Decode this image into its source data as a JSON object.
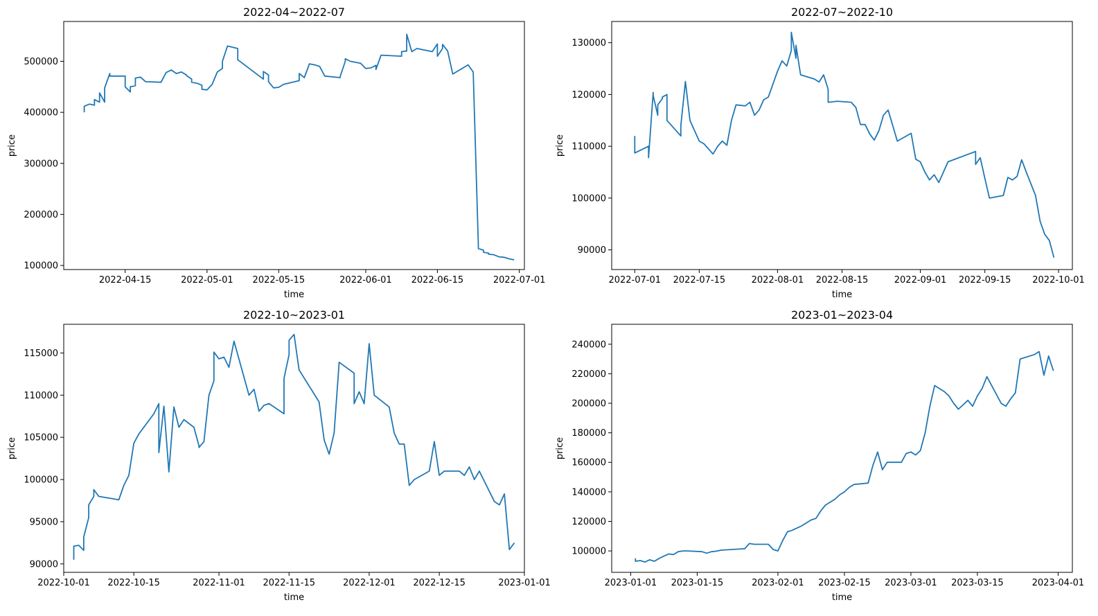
{
  "colors": {
    "line": "#1f77b4",
    "axes": "#000000",
    "background": "#ffffff"
  },
  "chart_data": [
    {
      "type": "line",
      "title": "2022-04~2022-07",
      "xlabel": "time",
      "ylabel": "price",
      "xlim": [
        "2022-04-03",
        "2022-07-02"
      ],
      "ylim": [
        92000,
        578000
      ],
      "grid": false,
      "x_ticks": [
        "2022-04-15",
        "2022-05-01",
        "2022-05-15",
        "2022-06-01",
        "2022-06-15",
        "2022-07-01"
      ],
      "x_tick_labels": [
        "2022-04-15",
        "2022-05-01",
        "2022-05-15",
        "2022-06-01",
        "2022-06-15",
        "2022-07-01"
      ],
      "y_ticks": [
        100000,
        200000,
        300000,
        400000,
        500000
      ],
      "y_tick_labels": [
        "100000",
        "200000",
        "300000",
        "400000",
        "500000"
      ],
      "series": [
        {
          "x": [
            "2022-04-07",
            "2022-04-07",
            "2022-04-08",
            "2022-04-09",
            "2022-04-09",
            "2022-04-10",
            "2022-04-10",
            "2022-04-11",
            "2022-04-11",
            "2022-04-12",
            "2022-04-12",
            "2022-04-15",
            "2022-04-15",
            "2022-04-16",
            "2022-04-16",
            "2022-04-17",
            "2022-04-17",
            "2022-04-18",
            "2022-04-19",
            "2022-04-22",
            "2022-04-23",
            "2022-04-24",
            "2022-04-25",
            "2022-04-26",
            "2022-04-27",
            "2022-04-27",
            "2022-04-28",
            "2022-04-28",
            "2022-04-29",
            "2022-04-30",
            "2022-04-30",
            "2022-05-01",
            "2022-05-02",
            "2022-05-03",
            "2022-05-04",
            "2022-05-04",
            "2022-05-05",
            "2022-05-07",
            "2022-05-07",
            "2022-05-12",
            "2022-05-12",
            "2022-05-13",
            "2022-05-13",
            "2022-05-14",
            "2022-05-15",
            "2022-05-16",
            "2022-05-19",
            "2022-05-19",
            "2022-05-20",
            "2022-05-21",
            "2022-05-22",
            "2022-05-23",
            "2022-05-24",
            "2022-05-27",
            "2022-05-27",
            "2022-05-28",
            "2022-05-28",
            "2022-05-29",
            "2022-05-30",
            "2022-05-31",
            "2022-06-01",
            "2022-06-02",
            "2022-06-03",
            "2022-06-03",
            "2022-06-04",
            "2022-06-08",
            "2022-06-08",
            "2022-06-09",
            "2022-06-09",
            "2022-06-10",
            "2022-06-11",
            "2022-06-14",
            "2022-06-15",
            "2022-06-15",
            "2022-06-16",
            "2022-06-16",
            "2022-06-17",
            "2022-06-18",
            "2022-06-21",
            "2022-06-22",
            "2022-06-23",
            "2022-06-23",
            "2022-06-24",
            "2022-06-24",
            "2022-06-25",
            "2022-06-25",
            "2022-06-26",
            "2022-06-27",
            "2022-06-28",
            "2022-06-29",
            "2022-06-30"
          ],
          "y": [
            400000,
            412000,
            416000,
            414000,
            425000,
            420000,
            438000,
            420000,
            448000,
            476000,
            471000,
            471000,
            450000,
            440000,
            450000,
            452000,
            467000,
            469000,
            460000,
            459000,
            478000,
            483000,
            476000,
            479000,
            473000,
            472000,
            465000,
            459000,
            457000,
            453000,
            445000,
            444000,
            455000,
            479000,
            486000,
            500000,
            530000,
            525000,
            503000,
            465000,
            480000,
            473000,
            460000,
            448000,
            449000,
            455000,
            462000,
            476000,
            468000,
            495000,
            493000,
            490000,
            471000,
            468000,
            470000,
            500000,
            505000,
            500000,
            498000,
            496000,
            486000,
            487000,
            492000,
            484000,
            512000,
            510000,
            519000,
            520000,
            553000,
            519000,
            525000,
            519000,
            534000,
            510000,
            525000,
            533000,
            520000,
            475000,
            493000,
            479000,
            140000,
            133000,
            130000,
            126000,
            124000,
            122000,
            121000,
            117000,
            116000,
            113000,
            111000
          ]
        }
      ]
    },
    {
      "type": "line",
      "title": "2022-07~2022-10",
      "xlabel": "time",
      "ylabel": "price",
      "xlim": [
        "2022-06-26",
        "2022-10-04"
      ],
      "ylim": [
        86200,
        134100
      ],
      "grid": false,
      "x_ticks": [
        "2022-07-01",
        "2022-07-15",
        "2022-08-01",
        "2022-08-15",
        "2022-09-01",
        "2022-09-15",
        "2022-10-01"
      ],
      "x_tick_labels": [
        "2022-07-01",
        "2022-07-15",
        "2022-08-01",
        "2022-08-15",
        "2022-09-01",
        "2022-09-15",
        "2022-10-01"
      ],
      "y_ticks": [
        90000,
        100000,
        110000,
        120000,
        130000
      ],
      "y_tick_labels": [
        "90000",
        "100000",
        "110000",
        "120000",
        "130000"
      ],
      "series": [
        {
          "x": [
            "2022-07-01",
            "2022-07-01",
            "2022-07-04",
            "2022-07-04",
            "2022-07-05",
            "2022-07-05",
            "2022-07-06",
            "2022-07-06",
            "2022-07-07",
            "2022-07-07",
            "2022-07-08",
            "2022-07-08",
            "2022-07-11",
            "2022-07-11",
            "2022-07-12",
            "2022-07-13",
            "2022-07-14",
            "2022-07-15",
            "2022-07-16",
            "2022-07-18",
            "2022-07-19",
            "2022-07-20",
            "2022-07-21",
            "2022-07-22",
            "2022-07-23",
            "2022-07-25",
            "2022-07-26",
            "2022-07-27",
            "2022-07-28",
            "2022-07-29",
            "2022-07-30",
            "2022-08-01",
            "2022-08-02",
            "2022-08-03",
            "2022-08-04",
            "2022-08-04",
            "2022-08-05",
            "2022-08-05",
            "2022-08-06",
            "2022-08-09",
            "2022-08-10",
            "2022-08-11",
            "2022-08-12",
            "2022-08-12",
            "2022-08-14",
            "2022-08-17",
            "2022-08-18",
            "2022-08-19",
            "2022-08-20",
            "2022-08-21",
            "2022-08-22",
            "2022-08-23",
            "2022-08-24",
            "2022-08-25",
            "2022-08-26",
            "2022-08-27",
            "2022-08-30",
            "2022-08-31",
            "2022-09-01",
            "2022-09-02",
            "2022-09-03",
            "2022-09-04",
            "2022-09-05",
            "2022-09-06",
            "2022-09-07",
            "2022-09-13",
            "2022-09-13",
            "2022-09-14",
            "2022-09-15",
            "2022-09-16",
            "2022-09-19",
            "2022-09-20",
            "2022-09-21",
            "2022-09-22",
            "2022-09-23",
            "2022-09-24",
            "2022-09-26",
            "2022-09-27",
            "2022-09-28",
            "2022-09-29",
            "2022-09-30"
          ],
          "y": [
            112000,
            108700,
            110000,
            107800,
            120400,
            119800,
            116000,
            118000,
            119200,
            119500,
            120000,
            115000,
            112000,
            114000,
            122500,
            115000,
            113000,
            111000,
            110500,
            108500,
            110000,
            111000,
            110200,
            115000,
            118000,
            117800,
            118500,
            116000,
            117000,
            119000,
            119500,
            124500,
            126500,
            125500,
            128500,
            132000,
            127000,
            129500,
            123800,
            123000,
            122400,
            123800,
            121000,
            118500,
            118700,
            118500,
            117500,
            114200,
            114200,
            112400,
            111200,
            113000,
            116000,
            117000,
            114000,
            111000,
            112500,
            107500,
            107000,
            105000,
            103500,
            104500,
            103000,
            105000,
            107000,
            109000,
            106500,
            107800,
            103800,
            100000,
            100500,
            104000,
            103500,
            104200,
            107400,
            105000,
            100500,
            95500,
            93000,
            91800,
            88500
          ]
        }
      ]
    },
    {
      "type": "line",
      "title": "2022-10~2023-01",
      "xlabel": "time",
      "ylabel": "price",
      "xlim": [
        "2022-10-01",
        "2023-01-01"
      ],
      "ylim": [
        89000,
        118400
      ],
      "grid": false,
      "x_ticks": [
        "2022-10-01",
        "2022-10-15",
        "2022-11-01",
        "2022-11-15",
        "2022-12-01",
        "2022-12-15",
        "2023-01-01"
      ],
      "x_tick_labels": [
        "2022-10-01",
        "2022-10-15",
        "2022-11-01",
        "2022-11-15",
        "2022-12-01",
        "2022-12-15",
        "2023-01-01"
      ],
      "y_ticks": [
        90000,
        95000,
        100000,
        105000,
        110000,
        115000
      ],
      "y_tick_labels": [
        "90000",
        "95000",
        "100000",
        "105000",
        "110000",
        "115000"
      ],
      "series": [
        {
          "x": [
            "2022-10-03",
            "2022-10-03",
            "2022-10-04",
            "2022-10-05",
            "2022-10-05",
            "2022-10-06",
            "2022-10-06",
            "2022-10-07",
            "2022-10-07",
            "2022-10-08",
            "2022-10-08",
            "2022-10-12",
            "2022-10-13",
            "2022-10-14",
            "2022-10-15",
            "2022-10-16",
            "2022-10-19",
            "2022-10-20",
            "2022-10-20",
            "2022-10-21",
            "2022-10-22",
            "2022-10-23",
            "2022-10-24",
            "2022-10-25",
            "2022-10-27",
            "2022-10-28",
            "2022-10-28",
            "2022-10-29",
            "2022-10-30",
            "2022-10-31",
            "2022-10-31",
            "2022-11-01",
            "2022-11-02",
            "2022-11-03",
            "2022-11-04",
            "2022-11-07",
            "2022-11-08",
            "2022-11-09",
            "2022-11-10",
            "2022-11-11",
            "2022-11-14",
            "2022-11-14",
            "2022-11-15",
            "2022-11-15",
            "2022-11-16",
            "2022-11-17",
            "2022-11-21",
            "2022-11-22",
            "2022-11-23",
            "2022-11-24",
            "2022-11-25",
            "2022-11-28",
            "2022-11-28",
            "2022-11-29",
            "2022-11-30",
            "2022-12-01",
            "2022-12-02",
            "2022-12-05",
            "2022-12-06",
            "2022-12-07",
            "2022-12-08",
            "2022-12-09",
            "2022-12-10",
            "2022-12-13",
            "2022-12-14",
            "2022-12-15",
            "2022-12-16",
            "2022-12-19",
            "2022-12-20",
            "2022-12-21",
            "2022-12-22",
            "2022-12-23",
            "2022-12-26",
            "2022-12-27",
            "2022-12-28",
            "2022-12-29",
            "2022-12-30"
          ],
          "y": [
            90500,
            92100,
            92200,
            91600,
            93200,
            95500,
            97000,
            98000,
            98800,
            98000,
            98000,
            97600,
            99300,
            100500,
            104300,
            105400,
            107800,
            109000,
            103200,
            108700,
            100900,
            108600,
            106200,
            107100,
            106200,
            104000,
            103800,
            104500,
            110000,
            111700,
            115100,
            114300,
            114500,
            113300,
            116400,
            110000,
            110700,
            108100,
            108800,
            109000,
            107800,
            112000,
            114800,
            116500,
            117200,
            113000,
            109200,
            104700,
            103000,
            105500,
            113900,
            112600,
            109000,
            110400,
            109000,
            116100,
            110000,
            108600,
            105500,
            104200,
            104200,
            99300,
            100000,
            101000,
            104500,
            100500,
            101000,
            101000,
            100500,
            101500,
            100000,
            101000,
            97400,
            97000,
            98300,
            91700,
            92500
          ]
        }
      ]
    },
    {
      "type": "line",
      "title": "2023-01~2023-04",
      "xlabel": "time",
      "ylabel": "price",
      "xlim": [
        "2022-12-28",
        "2023-04-04"
      ],
      "ylim": [
        85500,
        253500
      ],
      "grid": false,
      "x_ticks": [
        "2023-01-01",
        "2023-01-15",
        "2023-02-01",
        "2023-02-15",
        "2023-03-01",
        "2023-03-15",
        "2023-04-01"
      ],
      "x_tick_labels": [
        "2023-01-01",
        "2023-01-15",
        "2023-02-01",
        "2023-02-15",
        "2023-03-01",
        "2023-03-15",
        "2023-04-01"
      ],
      "y_ticks": [
        100000,
        120000,
        140000,
        160000,
        180000,
        200000,
        220000,
        240000
      ],
      "y_tick_labels": [
        "100000",
        "120000",
        "140000",
        "160000",
        "180000",
        "200000",
        "220000",
        "240000"
      ],
      "series": [
        {
          "x": [
            "2023-01-02",
            "2023-01-02",
            "2023-01-03",
            "2023-01-04",
            "2023-01-05",
            "2023-01-06",
            "2023-01-07",
            "2023-01-08",
            "2023-01-09",
            "2023-01-10",
            "2023-01-11",
            "2023-01-12",
            "2023-01-13",
            "2023-01-16",
            "2023-01-17",
            "2023-01-18",
            "2023-01-19",
            "2023-01-20",
            "2023-01-25",
            "2023-01-26",
            "2023-01-27",
            "2023-01-30",
            "2023-01-31",
            "2023-02-01",
            "2023-02-02",
            "2023-02-03",
            "2023-02-04",
            "2023-02-06",
            "2023-02-07",
            "2023-02-08",
            "2023-02-09",
            "2023-02-10",
            "2023-02-11",
            "2023-02-13",
            "2023-02-14",
            "2023-02-15",
            "2023-02-16",
            "2023-02-17",
            "2023-02-20",
            "2023-02-21",
            "2023-02-22",
            "2023-02-23",
            "2023-02-24",
            "2023-02-27",
            "2023-02-28",
            "2023-03-01",
            "2023-03-02",
            "2023-03-03",
            "2023-03-04",
            "2023-03-05",
            "2023-03-06",
            "2023-03-07",
            "2023-03-08",
            "2023-03-09",
            "2023-03-10",
            "2023-03-11",
            "2023-03-13",
            "2023-03-14",
            "2023-03-15",
            "2023-03-16",
            "2023-03-17",
            "2023-03-20",
            "2023-03-21",
            "2023-03-22",
            "2023-03-23",
            "2023-03-24",
            "2023-03-27",
            "2023-03-28",
            "2023-03-29",
            "2023-03-30",
            "2023-03-31"
          ],
          "y": [
            95000,
            93000,
            93500,
            92500,
            94000,
            93000,
            95000,
            96500,
            98000,
            97500,
            99500,
            100000,
            100000,
            99500,
            98500,
            99500,
            99800,
            100500,
            101500,
            105000,
            104500,
            104500,
            101000,
            100000,
            107000,
            113000,
            114000,
            117000,
            119000,
            121000,
            122000,
            127000,
            131000,
            135000,
            138000,
            140000,
            143000,
            145000,
            146000,
            158000,
            167000,
            155000,
            160000,
            160000,
            166000,
            167000,
            165000,
            168000,
            180000,
            198000,
            212000,
            210000,
            208000,
            205000,
            200000,
            196000,
            202000,
            198000,
            205000,
            210000,
            218000,
            200000,
            198000,
            203000,
            207000,
            230000,
            233000,
            235000,
            219000,
            232000,
            222000
          ]
        }
      ]
    }
  ]
}
